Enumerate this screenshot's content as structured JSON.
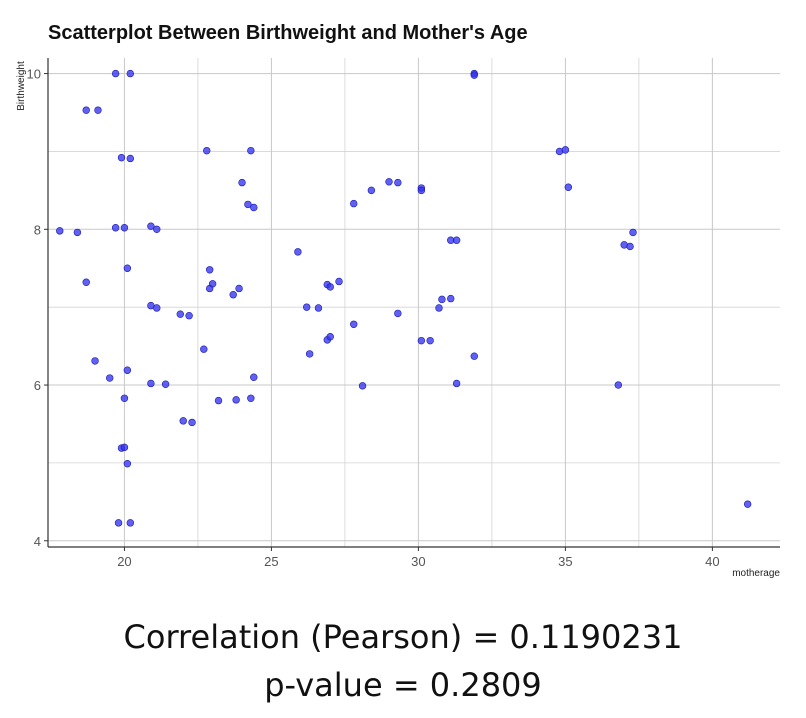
{
  "chart_data": {
    "type": "scatter",
    "title": "Scatterplot Between Birthweight and Mother's Age",
    "xlabel": "motherage",
    "ylabel": "Birthweight",
    "xlim": [
      17.4,
      42.3
    ],
    "ylim": [
      3.92,
      10.2
    ],
    "xticks": [
      20,
      25,
      30,
      35,
      40
    ],
    "yticks": [
      4,
      6,
      8,
      10
    ],
    "x_minor_grid": [
      22.5,
      27.5,
      32.5,
      37.5
    ],
    "y_minor_grid": [
      5,
      7,
      9
    ],
    "grid": true,
    "point_color": "#3333ee",
    "points": [
      [
        19.7,
        10.0
      ],
      [
        20.2,
        10.0
      ],
      [
        31.9,
        10.0
      ],
      [
        31.9,
        9.98
      ],
      [
        18.7,
        9.53
      ],
      [
        19.1,
        9.53
      ],
      [
        19.9,
        8.92
      ],
      [
        20.2,
        8.91
      ],
      [
        22.8,
        9.01
      ],
      [
        24.3,
        9.01
      ],
      [
        34.8,
        9.0
      ],
      [
        35.0,
        9.02
      ],
      [
        24.0,
        8.6
      ],
      [
        24.2,
        8.32
      ],
      [
        24.4,
        8.28
      ],
      [
        28.4,
        8.5
      ],
      [
        29.0,
        8.61
      ],
      [
        29.3,
        8.6
      ],
      [
        30.1,
        8.53
      ],
      [
        30.1,
        8.5
      ],
      [
        35.1,
        8.54
      ],
      [
        27.8,
        8.33
      ],
      [
        17.8,
        7.98
      ],
      [
        18.4,
        7.96
      ],
      [
        19.7,
        8.02
      ],
      [
        20.0,
        8.02
      ],
      [
        20.9,
        8.04
      ],
      [
        21.1,
        8.0
      ],
      [
        31.1,
        7.86
      ],
      [
        31.3,
        7.86
      ],
      [
        37.0,
        7.8
      ],
      [
        37.2,
        7.78
      ],
      [
        37.3,
        7.96
      ],
      [
        25.9,
        7.71
      ],
      [
        20.1,
        7.5
      ],
      [
        22.9,
        7.48
      ],
      [
        18.7,
        7.32
      ],
      [
        22.9,
        7.24
      ],
      [
        23.0,
        7.3
      ],
      [
        23.7,
        7.16
      ],
      [
        23.9,
        7.24
      ],
      [
        26.9,
        7.29
      ],
      [
        27.0,
        7.26
      ],
      [
        27.3,
        7.33
      ],
      [
        20.9,
        7.02
      ],
      [
        21.1,
        6.99
      ],
      [
        21.9,
        6.91
      ],
      [
        22.2,
        6.89
      ],
      [
        26.2,
        7.0
      ],
      [
        26.6,
        6.99
      ],
      [
        29.3,
        6.92
      ],
      [
        30.7,
        6.99
      ],
      [
        30.8,
        7.1
      ],
      [
        31.1,
        7.11
      ],
      [
        22.7,
        6.46
      ],
      [
        26.3,
        6.4
      ],
      [
        26.9,
        6.58
      ],
      [
        27.0,
        6.62
      ],
      [
        27.8,
        6.78
      ],
      [
        30.1,
        6.57
      ],
      [
        30.4,
        6.57
      ],
      [
        31.9,
        6.37
      ],
      [
        19.0,
        6.31
      ],
      [
        19.5,
        6.09
      ],
      [
        20.1,
        6.19
      ],
      [
        20.9,
        6.02
      ],
      [
        21.4,
        6.01
      ],
      [
        24.4,
        6.1
      ],
      [
        28.1,
        5.99
      ],
      [
        31.3,
        6.02
      ],
      [
        36.8,
        6.0
      ],
      [
        20.0,
        5.83
      ],
      [
        22.0,
        5.54
      ],
      [
        22.3,
        5.52
      ],
      [
        23.2,
        5.8
      ],
      [
        23.8,
        5.81
      ],
      [
        24.3,
        5.83
      ],
      [
        19.9,
        5.19
      ],
      [
        20.0,
        5.2
      ],
      [
        20.1,
        4.99
      ],
      [
        19.8,
        4.23
      ],
      [
        20.2,
        4.23
      ],
      [
        41.2,
        4.47
      ]
    ]
  },
  "caption": {
    "correlation": "Correlation (Pearson) = 0.1190231",
    "pvalue": "p-value = 0.2809"
  }
}
